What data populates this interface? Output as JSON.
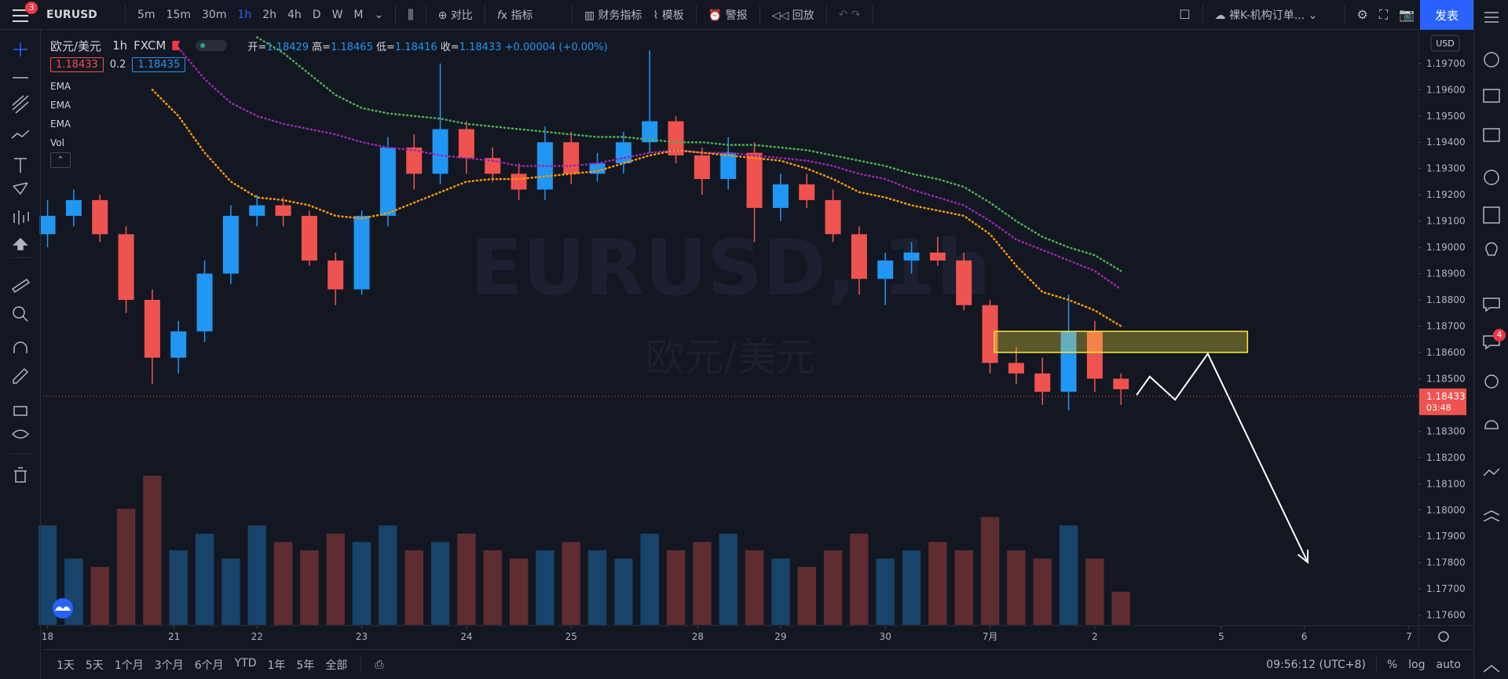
{
  "toolbar": {
    "symbol": "EURUSD",
    "badge": "3",
    "intervals": [
      "5m",
      "15m",
      "30m",
      "1h",
      "2h",
      "4h",
      "D",
      "W",
      "M"
    ],
    "compare": "对比",
    "indicators": "指标",
    "financials": "财务指标",
    "templates": "模板",
    "alert": "警报",
    "replay": "回放",
    "layout": "裸K-机构订单...",
    "publish": "发表"
  },
  "legend": {
    "name": "欧元/美元",
    "interval": "1h",
    "exchange": "FXCM",
    "open_label": "开=",
    "open": "1.18429",
    "high_label": "高=",
    "high": "1.18465",
    "low_label": "低=",
    "low": "1.18416",
    "close_label": "收=",
    "close": "1.18433",
    "change": "+0.00004 (+0.00%)",
    "bid": "1.18433",
    "spread": "0.2",
    "ask": "1.18435",
    "volume": "Vol"
  },
  "chart_data": {
    "type": "candlestick",
    "watermark": "EURUSD, 1h",
    "watermark_sub": "欧元/美元",
    "currency": "USD",
    "x": [
      0,
      6,
      12,
      18,
      24,
      30,
      36,
      42,
      48,
      54,
      60,
      66,
      72,
      78,
      84,
      90,
      96,
      102,
      108,
      114,
      120,
      126,
      132,
      138,
      144,
      150,
      156,
      162,
      168,
      174,
      180,
      186,
      192,
      198,
      204,
      210,
      216,
      222,
      228,
      234,
      240,
      246
    ],
    "open": [
      1.1905,
      1.1912,
      1.1918,
      1.1905,
      1.188,
      1.1858,
      1.1868,
      1.189,
      1.1912,
      1.1916,
      1.1912,
      1.1895,
      1.1884,
      1.1912,
      1.1938,
      1.1928,
      1.1945,
      1.1934,
      1.1928,
      1.1922,
      1.194,
      1.1928,
      1.1932,
      1.194,
      1.1948,
      1.1935,
      1.1926,
      1.1936,
      1.1915,
      1.1924,
      1.1918,
      1.1905,
      1.1888,
      1.1895,
      1.1898,
      1.1895,
      1.1878,
      1.1856,
      1.1852,
      1.1845,
      1.1868,
      1.185
    ],
    "high": [
      1.1918,
      1.1922,
      1.192,
      1.1908,
      1.1884,
      1.1872,
      1.1895,
      1.1916,
      1.192,
      1.1919,
      1.1914,
      1.1898,
      1.1914,
      1.1942,
      1.1943,
      1.197,
      1.1948,
      1.1938,
      1.1932,
      1.1946,
      1.1944,
      1.1936,
      1.1944,
      1.1975,
      1.195,
      1.1938,
      1.1942,
      1.194,
      1.1928,
      1.1928,
      1.1922,
      1.1908,
      1.1898,
      1.1902,
      1.1904,
      1.1898,
      1.188,
      1.1862,
      1.1858,
      1.1882,
      1.1872,
      1.1852
    ],
    "low": [
      1.19,
      1.1908,
      1.1902,
      1.1875,
      1.1848,
      1.1852,
      1.1864,
      1.1886,
      1.1908,
      1.1908,
      1.1893,
      1.1878,
      1.1882,
      1.1908,
      1.1922,
      1.1924,
      1.1928,
      1.1925,
      1.1918,
      1.1918,
      1.1924,
      1.1925,
      1.1928,
      1.1936,
      1.1932,
      1.192,
      1.1922,
      1.1902,
      1.191,
      1.1915,
      1.1902,
      1.1882,
      1.1878,
      1.189,
      1.1893,
      1.1876,
      1.1852,
      1.1848,
      1.184,
      1.1838,
      1.1845,
      1.184
    ],
    "close": [
      1.1912,
      1.1918,
      1.1905,
      1.188,
      1.1858,
      1.1868,
      1.189,
      1.1912,
      1.1916,
      1.1912,
      1.1895,
      1.1884,
      1.1912,
      1.1938,
      1.1928,
      1.1945,
      1.1934,
      1.1928,
      1.1922,
      1.194,
      1.1928,
      1.1932,
      1.194,
      1.1948,
      1.1935,
      1.1926,
      1.1936,
      1.1915,
      1.1924,
      1.1918,
      1.1905,
      1.1888,
      1.1895,
      1.1898,
      1.1895,
      1.1878,
      1.1856,
      1.1852,
      1.1845,
      1.1868,
      1.185,
      1.1846
    ],
    "volume": [
      60,
      40,
      35,
      70,
      90,
      45,
      55,
      40,
      60,
      50,
      45,
      55,
      50,
      60,
      45,
      50,
      55,
      45,
      40,
      45,
      50,
      45,
      40,
      55,
      45,
      50,
      55,
      45,
      40,
      35,
      45,
      55,
      40,
      45,
      50,
      45,
      65,
      45,
      40,
      60,
      40,
      20
    ],
    "up_color": "#2196f3",
    "down_color": "#ef5350",
    "series": [
      {
        "name": "EMA",
        "color": "#4caf50",
        "values": [
          null,
          null,
          null,
          null,
          null,
          null,
          null,
          null,
          1.198,
          1.1974,
          1.1966,
          1.1958,
          1.1953,
          1.1951,
          1.195,
          1.1949,
          1.1947,
          1.1946,
          1.1945,
          1.1944,
          1.1943,
          1.1942,
          1.1942,
          1.1941,
          1.194,
          1.194,
          1.1939,
          1.1939,
          1.1938,
          1.1937,
          1.1935,
          1.1933,
          1.1931,
          1.1928,
          1.1926,
          1.1923,
          1.1917,
          1.191,
          1.1904,
          1.19,
          1.1897,
          1.1891
        ]
      },
      {
        "name": "EMA",
        "color": "#9c27b0",
        "values": [
          null,
          null,
          null,
          null,
          null,
          1.1976,
          1.1964,
          1.1955,
          1.195,
          1.1947,
          1.1945,
          1.1943,
          1.194,
          1.1938,
          1.1937,
          1.1935,
          1.1934,
          1.1933,
          1.1931,
          1.1931,
          1.1931,
          1.1932,
          1.1934,
          1.1936,
          1.1937,
          1.1936,
          1.1936,
          1.1935,
          1.1934,
          1.1933,
          1.1931,
          1.1928,
          1.1926,
          1.1922,
          1.1919,
          1.1916,
          1.191,
          1.1903,
          1.1899,
          1.1895,
          1.1891,
          1.1884
        ]
      },
      {
        "name": "EMA",
        "color": "#ff9800",
        "values": [
          null,
          null,
          null,
          null,
          1.196,
          1.195,
          1.1936,
          1.1925,
          1.1919,
          1.1918,
          1.1916,
          1.1912,
          1.1911,
          1.1913,
          1.1917,
          1.1921,
          1.1925,
          1.1926,
          1.1926,
          1.1927,
          1.1928,
          1.1929,
          1.1932,
          1.1935,
          1.1937,
          1.1936,
          1.1935,
          1.1934,
          1.1933,
          1.193,
          1.1926,
          1.1921,
          1.1919,
          1.1916,
          1.1914,
          1.1912,
          1.1905,
          1.1893,
          1.1883,
          1.188,
          1.1876,
          1.187
        ]
      }
    ],
    "zone": {
      "x": [
        217,
        275
      ],
      "y": [
        1.186,
        1.1868
      ],
      "color": "#ffeb3b"
    },
    "arrow": {
      "x": [
        249.6,
        252.6,
        258.4,
        265.9,
        288.8
      ],
      "y": [
        1.18438,
        1.18508,
        1.1842,
        1.18595,
        1.17801
      ],
      "color": "#ffffff"
    },
    "price_label": {
      "value": 1.18433,
      "label": "1.18433"
    },
    "countdown": "03:48",
    "xlim": [
      -1,
      314
    ],
    "ylim": [
      1.17563,
      1.19828
    ],
    "xticks": [
      {
        "value": 0,
        "label": "18"
      },
      {
        "value": 29,
        "label": "21"
      },
      {
        "value": 48,
        "label": "22"
      },
      {
        "value": 72,
        "label": "23"
      },
      {
        "value": 96,
        "label": "24"
      },
      {
        "value": 120,
        "label": "25"
      },
      {
        "value": 149,
        "label": "28"
      },
      {
        "value": 168,
        "label": "29"
      },
      {
        "value": 192,
        "label": "30"
      },
      {
        "value": 216,
        "label": "7月"
      },
      {
        "value": 240,
        "label": "2"
      },
      {
        "value": 269,
        "label": "5"
      },
      {
        "value": 288,
        "label": "6"
      },
      {
        "value": 312,
        "label": "7"
      }
    ],
    "yticks": [
      {
        "value": 1.176,
        "label": "1.17600"
      },
      {
        "value": 1.177,
        "label": "1.17700"
      },
      {
        "value": 1.178,
        "label": "1.17800"
      },
      {
        "value": 1.179,
        "label": "1.17900"
      },
      {
        "value": 1.18,
        "label": "1.18000"
      },
      {
        "value": 1.181,
        "label": "1.18100"
      },
      {
        "value": 1.182,
        "label": "1.18200"
      },
      {
        "value": 1.183,
        "label": "1.18300"
      },
      {
        "value": 1.184,
        "label": "1.18400"
      },
      {
        "value": 1.185,
        "label": "1.18500"
      },
      {
        "value": 1.186,
        "label": "1.18600"
      },
      {
        "value": 1.187,
        "label": "1.18700"
      },
      {
        "value": 1.188,
        "label": "1.18800"
      },
      {
        "value": 1.189,
        "label": "1.18900"
      },
      {
        "value": 1.19,
        "label": "1.19000"
      },
      {
        "value": 1.191,
        "label": "1.19100"
      },
      {
        "value": 1.192,
        "label": "1.19200"
      },
      {
        "value": 1.193,
        "label": "1.19300"
      },
      {
        "value": 1.194,
        "label": "1.19400"
      },
      {
        "value": 1.195,
        "label": "1.19500"
      },
      {
        "value": 1.196,
        "label": "1.19600"
      },
      {
        "value": 1.197,
        "label": "1.19700"
      }
    ]
  },
  "bottom_bar": {
    "ranges": [
      "1天",
      "5天",
      "1个月",
      "3个月",
      "6个月",
      "YTD",
      "1年",
      "5年",
      "全部"
    ],
    "clock": "09:56:12 (UTC+8)",
    "percent": "%",
    "log": "log",
    "auto": "auto"
  },
  "sidebar": {
    "badge": "4"
  }
}
